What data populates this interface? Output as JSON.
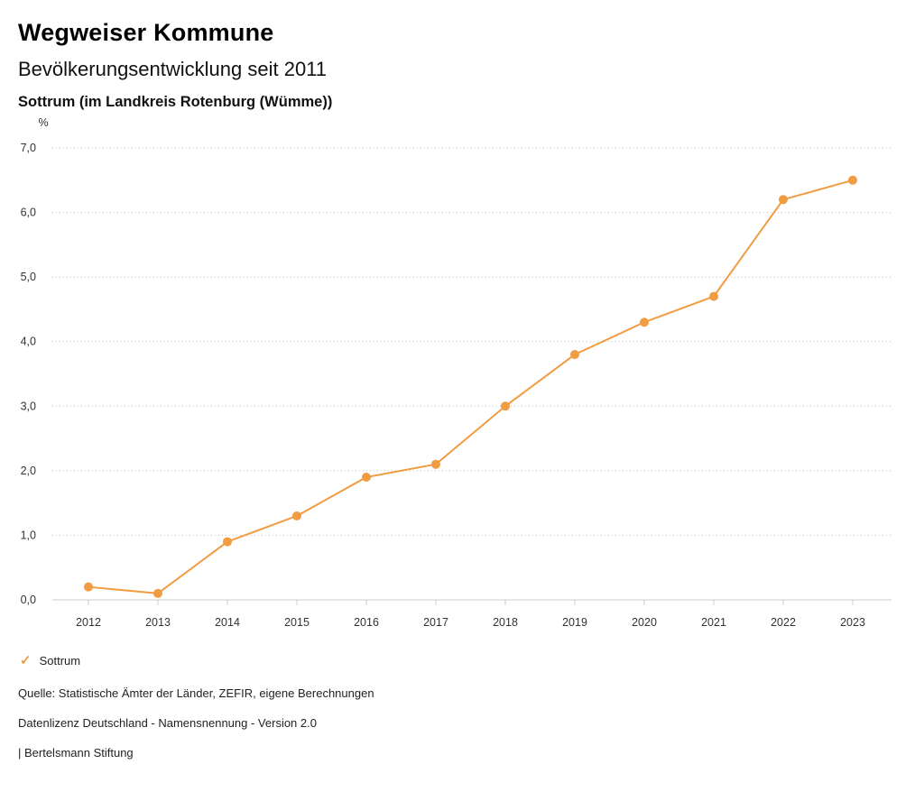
{
  "header": {
    "title": "Wegweiser Kommune",
    "subtitle": "Bevölkerungsentwicklung seit 2011",
    "region": "Sottrum (im Landkreis Rotenburg (Wümme))"
  },
  "chart_data": {
    "type": "line",
    "x": [
      "2012",
      "2013",
      "2014",
      "2015",
      "2016",
      "2017",
      "2018",
      "2019",
      "2020",
      "2021",
      "2022",
      "2023"
    ],
    "series": [
      {
        "name": "Sottrum",
        "values": [
          0.2,
          0.1,
          0.9,
          1.3,
          1.9,
          2.1,
          3.0,
          3.8,
          4.3,
          4.7,
          6.2,
          6.5
        ],
        "color": "#f29c42"
      }
    ],
    "title": "Bevölkerungsentwicklung seit 2011",
    "xlabel": "",
    "ylabel": "%",
    "ylim": [
      0,
      7
    ],
    "ytick_step": 1,
    "ytick_labels": [
      "0,0",
      "1,0",
      "2,0",
      "3,0",
      "4,0",
      "5,0",
      "6,0",
      "7,0"
    ],
    "grid": "horizontal-dotted",
    "legend_position": "bottom-left",
    "colors": {
      "line": "#f29c42",
      "grid": "#bbbbbb",
      "axis": "#cccccc",
      "tick_text": "#333333"
    }
  },
  "legend": {
    "check_icon": "check-icon",
    "label": "Sottrum"
  },
  "footer": {
    "source": "Quelle: Statistische Ämter der Länder, ZEFIR, eigene Berechnungen",
    "license": "Datenlizenz Deutschland - Namensnennung - Version 2.0",
    "attribution": "| Bertelsmann Stiftung"
  }
}
